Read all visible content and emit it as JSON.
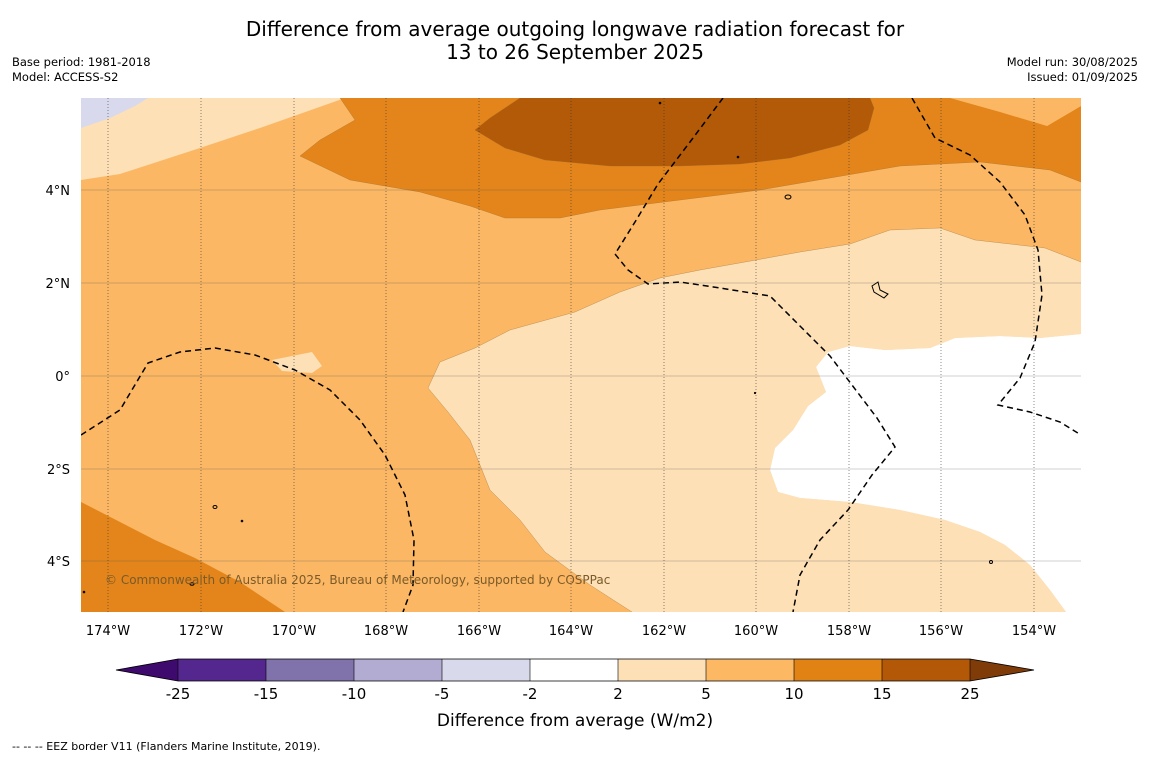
{
  "title": {
    "line1": "Difference from average outgoing longwave radiation forecast for",
    "line2": "13 to 26 September 2025"
  },
  "meta_left": {
    "base_period": "Base period: 1981-2018",
    "model": "Model: ACCESS-S2"
  },
  "meta_right": {
    "model_run": "Model run: 30/08/2025",
    "issued": "Issued: 01/09/2025"
  },
  "map": {
    "lon_labels": [
      "174°W",
      "172°W",
      "170°W",
      "168°W",
      "166°W",
      "164°W",
      "162°W",
      "160°W",
      "158°W",
      "156°W",
      "154°W"
    ],
    "lat_labels": [
      "4°N",
      "2°N",
      "0°",
      "2°S",
      "4°S"
    ],
    "copyright": "© Commonwealth of Australia 2025, Bureau of Meteorology, supported by COSPPac",
    "colors": {
      "c2_5": "#fde0b6",
      "c5_10": "#fbb763",
      "c10_15": "#e3851b",
      "c15_25": "#b35a08",
      "cm5_m2": "#d8d9ec",
      "cm2_2": "#ffffff"
    }
  },
  "colorbar": {
    "ticks": [
      "-25",
      "-15",
      "-10",
      "-5",
      "-2",
      "2",
      "5",
      "10",
      "15",
      "25"
    ],
    "colors": [
      "#3f0a6d",
      "#54278f",
      "#8073ac",
      "#b2abd2",
      "#d8daeb",
      "#ffffff",
      "#fee0b6",
      "#fdb863",
      "#e08214",
      "#b35806",
      "#7f3b08"
    ],
    "label": "Difference from average (W/m2)"
  },
  "footer": "--  --  -- EEZ border V11 (Flanders Marine Institute, 2019)."
}
